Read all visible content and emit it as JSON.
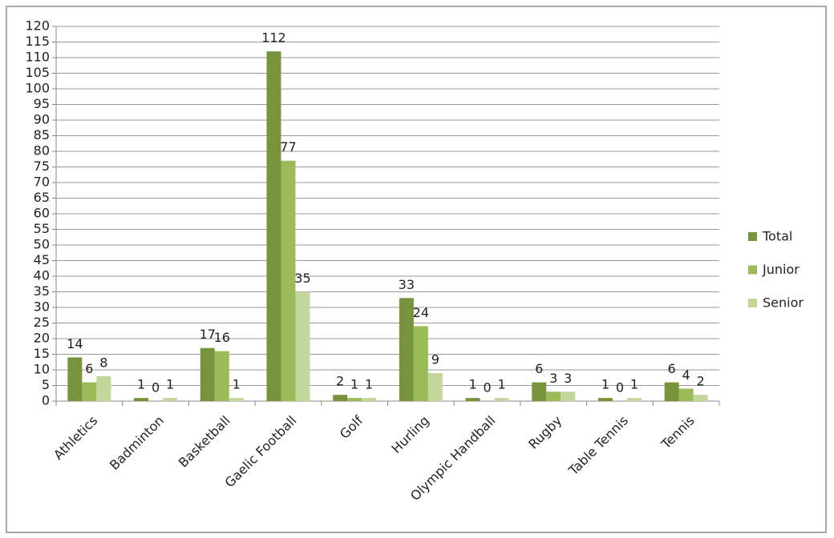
{
  "chart_data": {
    "type": "bar",
    "categories": [
      "Athletics",
      "Badminton",
      "Basketball",
      "Gaelic Football",
      "Golf",
      "Hurling",
      "Olympic Handball",
      "Rugby",
      "Table Tennis",
      "Tennis"
    ],
    "series": [
      {
        "name": "Total",
        "color": "#77933c",
        "values": [
          14,
          1,
          17,
          112,
          2,
          33,
          1,
          6,
          1,
          6
        ]
      },
      {
        "name": "Junior",
        "color": "#9bbb59",
        "values": [
          6,
          0,
          16,
          77,
          1,
          24,
          0,
          3,
          0,
          4
        ]
      },
      {
        "name": "Senior",
        "color": "#c3d69b",
        "values": [
          8,
          1,
          1,
          35,
          1,
          9,
          1,
          3,
          1,
          2
        ]
      }
    ],
    "ylim": [
      0,
      120
    ],
    "yticks": [
      0,
      5,
      10,
      15,
      20,
      25,
      30,
      35,
      40,
      45,
      50,
      55,
      60,
      65,
      70,
      75,
      80,
      85,
      90,
      95,
      100,
      105,
      110,
      115,
      120
    ],
    "grid": true,
    "legend": "right"
  }
}
